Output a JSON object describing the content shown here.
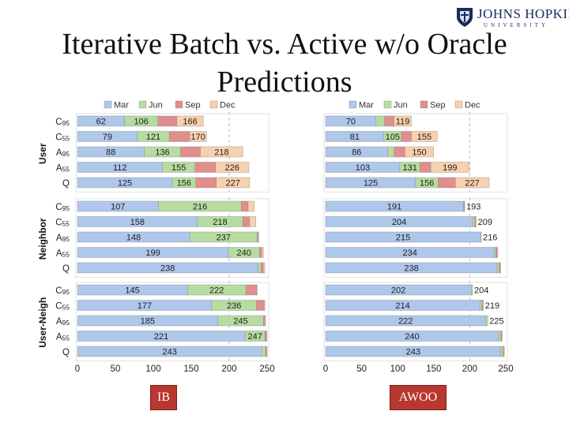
{
  "slide": {
    "title_line1": "Iterative Batch vs. Active w/o Oracle",
    "title_line2": "Predictions",
    "logo_name": "JOHNS HOPKINS",
    "logo_sub": "UNIVERSITY",
    "tag_left": "IB",
    "tag_right": "AWOO"
  },
  "colors": {
    "Mar": "#aec7ea",
    "Jun": "#b6dca0",
    "Sep": "#e08e8e",
    "Dec": "#f9d0ad",
    "tag": "#b8372f",
    "logo": "#1a2a5e"
  },
  "chart_data": [
    {
      "name": "IB",
      "type": "bar",
      "orientation": "horizontal",
      "stacked": true,
      "legend": [
        "Mar",
        "Jun",
        "Sep",
        "Dec"
      ],
      "xlim": [
        0,
        250
      ],
      "xticks": [
        0,
        50,
        100,
        150,
        200,
        250
      ],
      "groups": [
        {
          "label": "User",
          "categories": [
            "C95",
            "C55",
            "A95",
            "A55",
            "Q"
          ],
          "Mar": [
            62,
            79,
            88,
            112,
            125
          ],
          "Jun": [
            106,
            121,
            136,
            155,
            156
          ],
          "Sep": [
            131,
            148,
            162,
            182,
            183
          ],
          "Dec": [
            166,
            170,
            218,
            226,
            227
          ]
        },
        {
          "label": "Neighbor",
          "categories": [
            "C95",
            "C55",
            "A95",
            "A55",
            "Q"
          ],
          "Mar": [
            107,
            158,
            148,
            199,
            238
          ],
          "Jun": [
            216,
            218,
            237,
            240,
            242
          ],
          "Sep": [
            225,
            227,
            238,
            243,
            245
          ],
          "Dec": [
            233,
            235,
            239,
            245,
            247
          ]
        },
        {
          "label": "User-Neigh",
          "categories": [
            "C95",
            "C55",
            "A95",
            "A55",
            "Q"
          ],
          "Mar": [
            145,
            177,
            185,
            221,
            243
          ],
          "Jun": [
            222,
            236,
            245,
            247,
            248
          ],
          "Sep": [
            236,
            246,
            247,
            249,
            250
          ],
          "Dec": [
            237,
            247,
            248,
            250,
            250
          ]
        }
      ],
      "labels_mar": [
        [
          "62",
          "79",
          "88",
          "112",
          "125"
        ],
        [
          "107",
          "158",
          "148",
          "199",
          "238"
        ],
        [
          "145",
          "177",
          "185",
          "221",
          "243"
        ]
      ],
      "labels_jun": [
        [
          "106",
          "121",
          "136",
          "155",
          "156"
        ],
        [
          "216",
          "218",
          "237",
          "240",
          ""
        ],
        [
          "222",
          "236",
          "245",
          "247",
          ""
        ]
      ],
      "labels_dec": [
        [
          "166",
          "170",
          "218",
          "226",
          "227"
        ],
        [
          "",
          "",
          "",
          "",
          ""
        ],
        [
          "",
          "",
          "",
          "",
          ""
        ]
      ]
    },
    {
      "name": "AWOO",
      "type": "bar",
      "orientation": "horizontal",
      "stacked": true,
      "legend": [
        "Mar",
        "Jun",
        "Sep",
        "Dec"
      ],
      "xlim": [
        0,
        250
      ],
      "xticks": [
        0,
        50,
        100,
        150,
        200,
        250
      ],
      "groups": [
        {
          "label": "",
          "categories": [
            "C95",
            "C55",
            "A95",
            "A55",
            "Q"
          ],
          "Mar": [
            70,
            81,
            86,
            103,
            125
          ],
          "Jun": [
            82,
            105,
            95,
            131,
            156
          ],
          "Sep": [
            95,
            119,
            110,
            146,
            180
          ],
          "Dec": [
            119,
            155,
            150,
            199,
            227
          ]
        },
        {
          "label": "",
          "categories": [
            "C95",
            "C55",
            "A95",
            "A55",
            "Q"
          ],
          "Mar": [
            191,
            204,
            215,
            234,
            238
          ],
          "Jun": [
            192,
            207,
            216,
            236,
            241
          ],
          "Sep": [
            193,
            208,
            216,
            238,
            242
          ],
          "Dec": [
            193,
            209,
            216,
            239,
            243
          ]
        },
        {
          "label": "",
          "categories": [
            "C95",
            "C55",
            "A95",
            "A55",
            "Q"
          ],
          "Mar": [
            202,
            214,
            222,
            240,
            243
          ],
          "Jun": [
            204,
            217,
            225,
            243,
            246
          ],
          "Sep": [
            204,
            218,
            225,
            244,
            247
          ],
          "Dec": [
            204,
            219,
            225,
            245,
            248
          ]
        }
      ],
      "labels_mar": [
        [
          "70",
          "81",
          "86",
          "103",
          "125"
        ],
        [
          "191",
          "204",
          "215",
          "234",
          "238"
        ],
        [
          "202",
          "214",
          "222",
          "240",
          "243"
        ]
      ],
      "labels_jun": [
        [
          "",
          "105",
          "",
          "131",
          "156"
        ],
        [
          "",
          "",
          "",
          "",
          ""
        ],
        [
          "",
          "",
          "",
          "",
          ""
        ]
      ],
      "labels_dec": [
        [
          "119",
          "155",
          "150",
          "199",
          "227"
        ],
        [
          "193",
          "209",
          "216",
          "",
          ""
        ],
        [
          "204",
          "219",
          "225",
          "",
          ""
        ]
      ]
    }
  ]
}
